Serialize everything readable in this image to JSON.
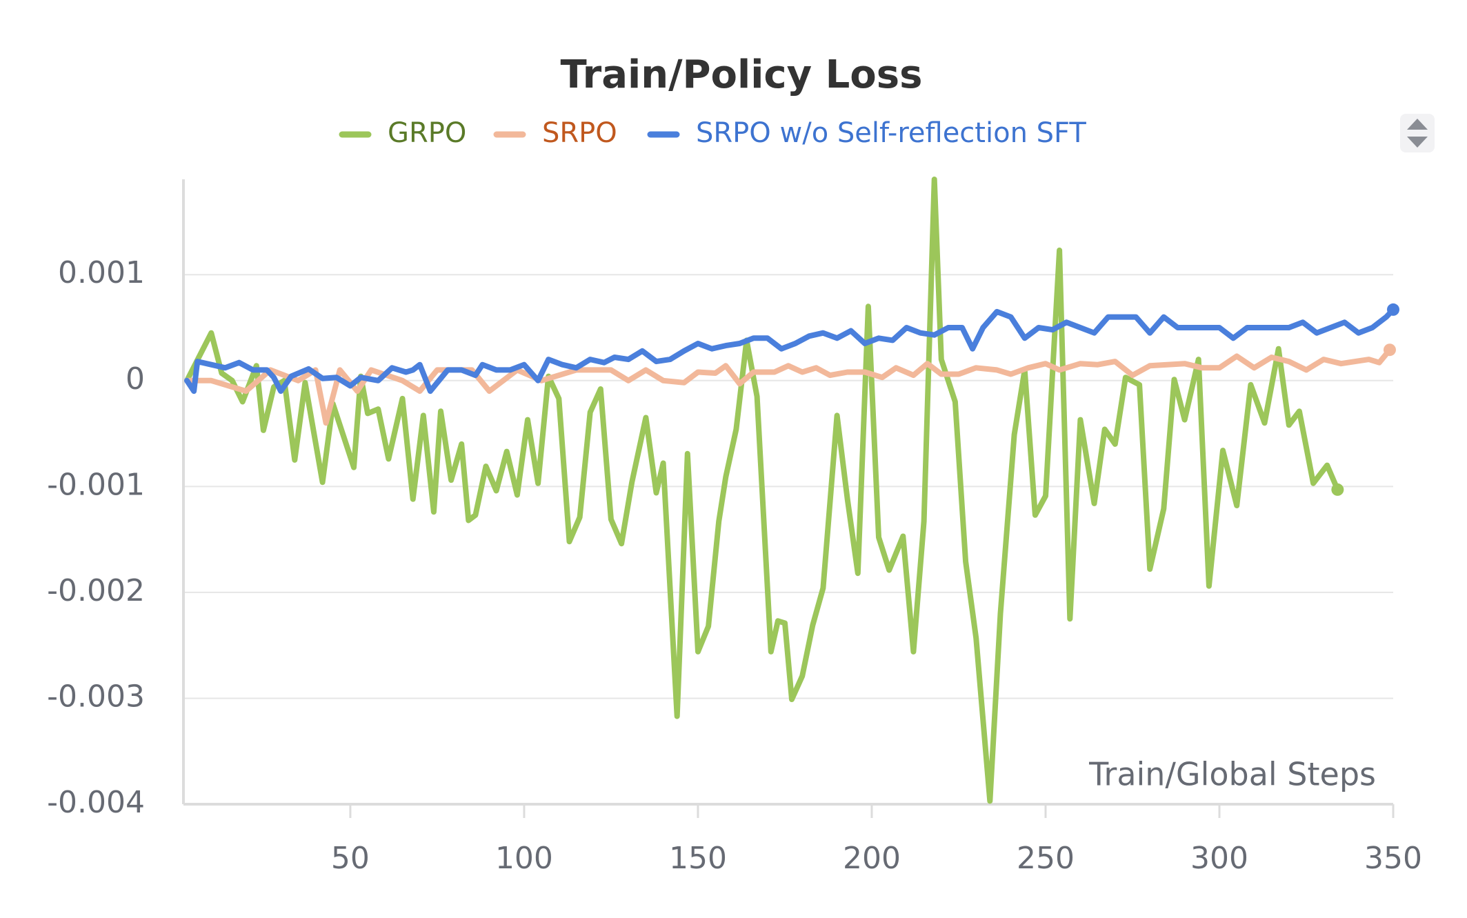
{
  "chart_data": {
    "type": "line",
    "title": "Train/Policy Loss",
    "x_label": "Train/Global Steps",
    "xlim": [
      2,
      350
    ],
    "ylim": [
      -0.004,
      0.0019
    ],
    "xticks": [
      50,
      100,
      150,
      200,
      250,
      300,
      350
    ],
    "yticks": [
      0.001,
      0,
      -0.001,
      -0.002,
      -0.003,
      -0.004
    ],
    "grid": true,
    "series": [
      {
        "name": "GRPO",
        "color": "#9cc65a",
        "x": [
          3,
          10,
          13,
          16,
          19,
          23,
          25,
          28,
          31,
          34,
          37,
          42,
          45,
          51,
          53,
          55,
          58,
          61,
          65,
          68,
          71,
          74,
          76,
          79,
          82,
          84,
          86,
          89,
          92,
          95,
          98,
          101,
          104,
          107,
          110,
          113,
          116,
          119,
          122,
          125,
          128,
          131,
          135,
          138,
          140,
          144,
          147,
          150,
          153,
          156,
          158,
          161,
          164,
          167,
          171,
          173,
          175,
          177,
          180,
          183,
          186,
          190,
          193,
          196,
          199,
          202,
          205,
          209,
          212,
          215,
          218,
          220,
          224,
          227,
          230,
          234,
          237,
          241,
          244,
          247,
          250,
          254,
          257,
          260,
          264,
          267,
          270,
          273,
          277,
          280,
          284,
          287,
          290,
          294,
          297,
          301,
          305,
          309,
          313,
          317,
          320,
          323,
          327,
          331,
          334
        ],
        "values": [
          0,
          0.00045,
          7e-05,
          0,
          -0.0002,
          0.00014,
          -0.00047,
          -6e-05,
          0,
          -0.00075,
          -2e-05,
          -0.00096,
          -0.00022,
          -0.00082,
          4e-05,
          -0.00031,
          -0.00027,
          -0.00074,
          -0.00017,
          -0.00112,
          -0.00033,
          -0.00124,
          -0.00029,
          -0.00094,
          -0.0006,
          -0.00132,
          -0.00127,
          -0.00081,
          -0.00104,
          -0.00067,
          -0.00108,
          -0.00037,
          -0.00097,
          4e-05,
          -0.00017,
          -0.00152,
          -0.00129,
          -0.0003,
          -8e-05,
          -0.00131,
          -0.00154,
          -0.00096,
          -0.00035,
          -0.00106,
          -0.00078,
          -0.00317,
          -0.00069,
          -0.00256,
          -0.00232,
          -0.00133,
          -0.00091,
          -0.00046,
          0.00038,
          -0.00015,
          -0.00256,
          -0.00227,
          -0.00229,
          -0.00301,
          -0.00279,
          -0.00231,
          -0.00196,
          -0.00033,
          -0.00112,
          -0.00182,
          0.0007,
          -0.00148,
          -0.00179,
          -0.00147,
          -0.00256,
          -0.00133,
          0.0019,
          0.0002,
          -0.0002,
          -0.00171,
          -0.00243,
          -0.00397,
          -0.0022,
          -0.00051,
          0.0001,
          -0.00127,
          -0.00109,
          0.00123,
          -0.00225,
          -0.00037,
          -0.00116,
          -0.00046,
          -0.0006,
          3e-05,
          -4e-05,
          -0.00178,
          -0.00121,
          1e-05,
          -0.00037,
          0.0002,
          -0.00194,
          -0.00066,
          -0.00118,
          -4e-05,
          -0.0004,
          0.0003,
          -0.00042,
          -0.00029,
          -0.00097,
          -0.0008,
          -0.00103
        ]
      },
      {
        "name": "SRPO",
        "color": "#f2b89a",
        "x": [
          3,
          10,
          20,
          27,
          35,
          40,
          43,
          47,
          52,
          56,
          65,
          70,
          75,
          85,
          90,
          98,
          105,
          115,
          125,
          130,
          135,
          140,
          146,
          150,
          155,
          158,
          162,
          166,
          172,
          176,
          180,
          184,
          188,
          193,
          198,
          203,
          207,
          212,
          216,
          220,
          225,
          230,
          236,
          240,
          245,
          250,
          254,
          260,
          265,
          270,
          275,
          280,
          290,
          295,
          300,
          305,
          310,
          315,
          320,
          325,
          330,
          335,
          343,
          346,
          349
        ],
        "values": [
          0,
          0,
          -0.0001,
          0.0001,
          0,
          0.0001,
          -0.0004,
          0.0001,
          -0.0001,
          0.0001,
          0,
          -0.0001,
          0.0001,
          0.0001,
          -0.0001,
          0.0001,
          0,
          0.0001,
          0.0001,
          0,
          0.0001,
          0,
          -2e-05,
          8e-05,
          7e-05,
          0.00014,
          -3e-05,
          8e-05,
          8e-05,
          0.00014,
          8e-05,
          0.00012,
          5e-05,
          8e-05,
          8e-05,
          3e-05,
          0.00012,
          5e-05,
          0.00016,
          6e-05,
          6e-05,
          0.00012,
          0.0001,
          6e-05,
          0.00012,
          0.00016,
          0.0001,
          0.00016,
          0.00015,
          0.00018,
          5e-05,
          0.00014,
          0.00016,
          0.00012,
          0.00012,
          0.00023,
          0.00012,
          0.00022,
          0.00018,
          0.0001,
          0.0002,
          0.00016,
          0.0002,
          0.00017,
          0.00029
        ]
      },
      {
        "name": "SRPO w/o Self-reflection SFT",
        "color": "#4a7fdc",
        "x": [
          3,
          5,
          6,
          10,
          14,
          18,
          22,
          26,
          28,
          30,
          33,
          38,
          42,
          46,
          50,
          53,
          58,
          62,
          66,
          68,
          70,
          73,
          78,
          82,
          86,
          88,
          92,
          96,
          100,
          104,
          107,
          111,
          115,
          119,
          123,
          126,
          130,
          134,
          138,
          142,
          146,
          150,
          154,
          158,
          162,
          166,
          170,
          174,
          178,
          182,
          186,
          190,
          194,
          198,
          202,
          206,
          210,
          214,
          218,
          222,
          226,
          229,
          232,
          236,
          240,
          244,
          248,
          252,
          256,
          260,
          264,
          268,
          272,
          276,
          280,
          284,
          288,
          292,
          296,
          300,
          304,
          308,
          312,
          316,
          320,
          324,
          328,
          332,
          336,
          340,
          344,
          348,
          350
        ],
        "values": [
          0,
          -0.0001,
          0.00018,
          0.00015,
          0.00012,
          0.00017,
          0.0001,
          0.0001,
          3e-05,
          -0.0001,
          4e-05,
          0.00011,
          2e-05,
          3e-05,
          -5e-05,
          3e-05,
          0,
          0.00012,
          8e-05,
          0.0001,
          0.00015,
          -0.0001,
          0.0001,
          0.0001,
          5e-05,
          0.00015,
          0.0001,
          0.0001,
          0.00015,
          0,
          0.0002,
          0.00015,
          0.00012,
          0.0002,
          0.00017,
          0.00022,
          0.0002,
          0.00028,
          0.00018,
          0.0002,
          0.00028,
          0.00035,
          0.0003,
          0.00033,
          0.00035,
          0.0004,
          0.0004,
          0.0003,
          0.00035,
          0.00042,
          0.00045,
          0.0004,
          0.00047,
          0.00035,
          0.0004,
          0.00038,
          0.0005,
          0.00045,
          0.00043,
          0.0005,
          0.0005,
          0.0003,
          0.0005,
          0.00065,
          0.0006,
          0.0004,
          0.0005,
          0.00048,
          0.00055,
          0.0005,
          0.00045,
          0.0006,
          0.0006,
          0.0006,
          0.00045,
          0.0006,
          0.0005,
          0.0005,
          0.0005,
          0.0005,
          0.0004,
          0.0005,
          0.0005,
          0.0005,
          0.0005,
          0.00055,
          0.00045,
          0.0005,
          0.00055,
          0.00045,
          0.0005,
          0.0006,
          0.00067
        ]
      }
    ]
  }
}
